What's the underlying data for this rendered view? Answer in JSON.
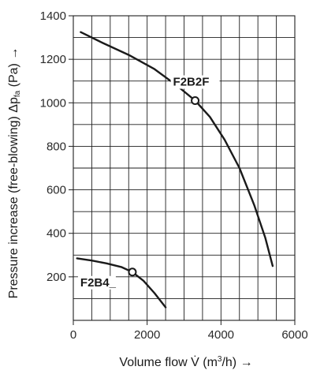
{
  "chart_data": {
    "type": "line",
    "title": "",
    "xlabel_parts": [
      "Volume flow V̇ (m",
      "3",
      "/h) →"
    ],
    "ylabel_parts": [
      "Pressure increase (free-blowing) Δp",
      "fa",
      " (Pa) →"
    ],
    "xlim": [
      0,
      6000
    ],
    "ylim": [
      0,
      1400
    ],
    "x_ticks": [
      0,
      2000,
      4000,
      6000
    ],
    "y_ticks": [
      200,
      400,
      600,
      800,
      1000,
      1200,
      1400
    ],
    "grid": true,
    "series": [
      {
        "name": "F2B2F",
        "x": [
          200,
          800,
          1500,
          2200,
          2800,
          3300,
          3700,
          4100,
          4500,
          4900,
          5200,
          5400
        ],
        "y": [
          1325,
          1275,
          1220,
          1155,
          1080,
          1010,
          935,
          830,
          700,
          530,
          380,
          250
        ],
        "marker": {
          "x": 3300,
          "y": 1010
        }
      },
      {
        "name": "F2B4_",
        "x": [
          100,
          500,
          900,
          1300,
          1600,
          1900,
          2200,
          2500
        ],
        "y": [
          285,
          275,
          262,
          245,
          222,
          182,
          125,
          60
        ],
        "marker": {
          "x": 1600,
          "y": 222
        }
      }
    ]
  }
}
